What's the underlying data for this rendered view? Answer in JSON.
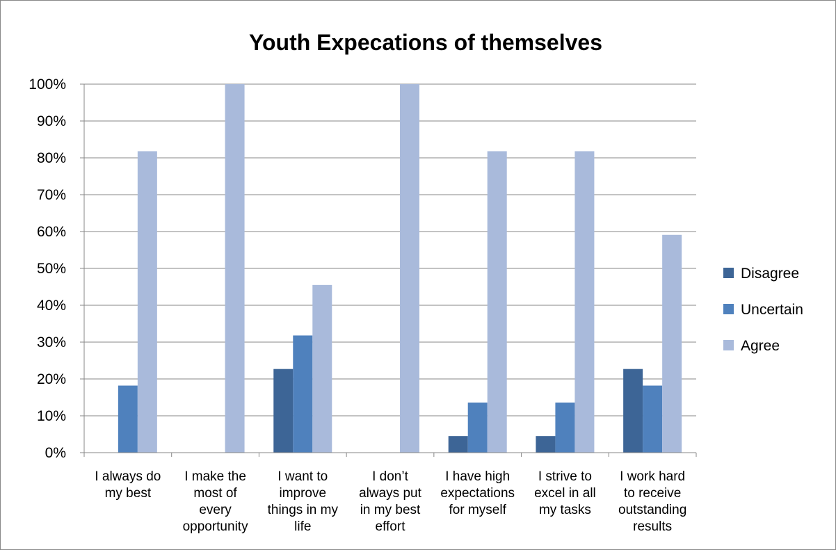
{
  "chart_data": {
    "type": "bar",
    "title": "Youth Expecations of themselves",
    "xlabel": "",
    "ylabel": "",
    "ylim": [
      0,
      100
    ],
    "y_ticks": [
      "0%",
      "10%",
      "20%",
      "30%",
      "40%",
      "50%",
      "60%",
      "70%",
      "80%",
      "90%",
      "100%"
    ],
    "grid": true,
    "legend_position": "right",
    "categories": [
      [
        "I always do",
        "my best"
      ],
      [
        "I make the",
        "most of",
        "every",
        "opportunity"
      ],
      [
        "I want to",
        "improve",
        "things in my",
        "life"
      ],
      [
        "I don’t",
        "always put",
        "in my best",
        "effort"
      ],
      [
        "I have high",
        "expectations",
        "for myself"
      ],
      [
        "I strive to",
        "excel in all",
        "my tasks"
      ],
      [
        "I work hard",
        "to receive",
        "outstanding",
        "results"
      ]
    ],
    "series": [
      {
        "name": "Disagree",
        "color": "#3d6596",
        "values": [
          0,
          0,
          22.7,
          0,
          4.5,
          4.5,
          22.7
        ]
      },
      {
        "name": "Uncertain",
        "color": "#4f81bd",
        "values": [
          18.2,
          0,
          31.8,
          0,
          13.6,
          13.6,
          18.2
        ]
      },
      {
        "name": "Agree",
        "color": "#a9badb",
        "values": [
          81.8,
          100,
          45.5,
          100,
          81.8,
          81.8,
          59.1
        ]
      }
    ]
  }
}
